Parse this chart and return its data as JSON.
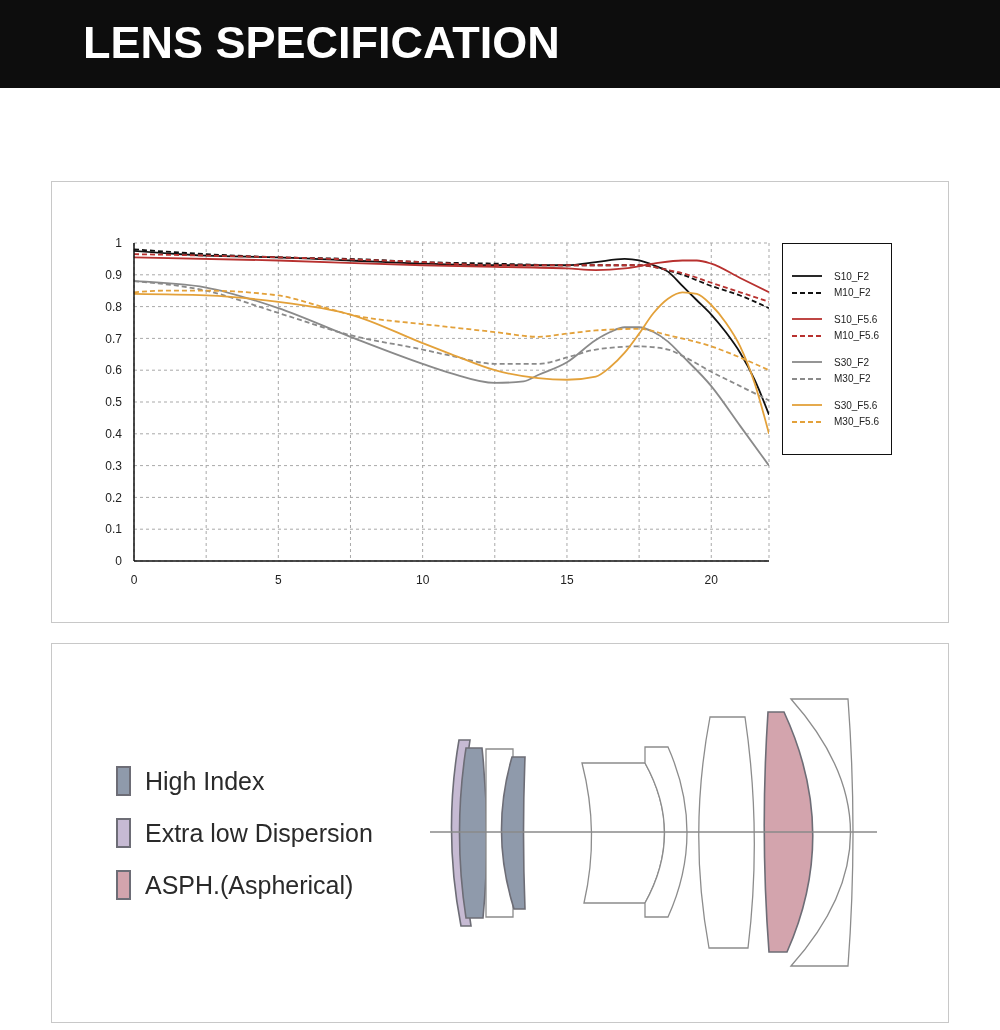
{
  "chart_data": [
    {
      "type": "line",
      "title": "LENS SPECIFICATION",
      "xlim": [
        0,
        22
      ],
      "xticks": [
        0,
        {
          "value": 2.5,
          "label": null
        },
        5,
        {
          "value": 7.5,
          "label": null
        },
        10,
        {
          "value": 12.5,
          "label": null
        },
        15,
        {
          "value": 17.5,
          "label": null
        },
        20
      ],
      "ylim": [
        0,
        1
      ],
      "yticks": [
        0,
        0.1,
        0.2,
        0.3,
        0.4,
        0.5,
        0.6,
        0.7,
        0.8,
        0.9,
        1
      ],
      "grid": true,
      "legend": "right",
      "series": [
        {
          "name": "S10_F2",
          "color": "#111111",
          "line_style": "solid",
          "x": [
            0,
            2.5,
            5,
            7.5,
            10,
            12.5,
            15,
            16,
            17,
            17.5,
            18,
            18.5,
            19,
            19.5,
            20,
            20.5,
            21,
            21.5,
            22
          ],
          "values": [
            0.975,
            0.96,
            0.955,
            0.945,
            0.935,
            0.93,
            0.93,
            0.94,
            0.95,
            0.945,
            0.93,
            0.91,
            0.865,
            0.82,
            0.775,
            0.72,
            0.655,
            0.57,
            0.46
          ]
        },
        {
          "name": "M10_F2",
          "color": "#111111",
          "line_style": "dashed",
          "x": [
            0,
            2.5,
            5,
            7.5,
            10,
            12.5,
            15,
            17.5,
            18,
            19,
            20,
            21,
            22
          ],
          "values": [
            0.98,
            0.965,
            0.955,
            0.95,
            0.94,
            0.935,
            0.93,
            0.93,
            0.925,
            0.9,
            0.865,
            0.835,
            0.795
          ]
        },
        {
          "name": "S10_F5.6",
          "color": "#b8312f",
          "line_style": "solid",
          "x": [
            0,
            5,
            10,
            12.5,
            15,
            16,
            17,
            18,
            19,
            19.5,
            20,
            21,
            22
          ],
          "values": [
            0.955,
            0.945,
            0.93,
            0.925,
            0.92,
            0.915,
            0.92,
            0.935,
            0.945,
            0.945,
            0.935,
            0.89,
            0.845
          ]
        },
        {
          "name": "M10_F5.6",
          "color": "#b8312f",
          "line_style": "dashed",
          "x": [
            0,
            5,
            10,
            12.5,
            15,
            17.5,
            18.5,
            19,
            20,
            21,
            22
          ],
          "values": [
            0.965,
            0.955,
            0.94,
            0.93,
            0.93,
            0.93,
            0.915,
            0.905,
            0.875,
            0.845,
            0.815
          ]
        },
        {
          "name": "S30_F2",
          "color": "#8a8a8a",
          "line_style": "solid",
          "x": [
            0,
            2.5,
            5,
            7.5,
            10,
            11,
            12.5,
            13.5,
            14,
            15,
            16,
            16.5,
            17,
            17.5,
            18,
            18.5,
            19,
            20,
            21,
            22
          ],
          "values": [
            0.88,
            0.86,
            0.795,
            0.705,
            0.62,
            0.59,
            0.56,
            0.565,
            0.585,
            0.625,
            0.695,
            0.72,
            0.735,
            0.735,
            0.72,
            0.69,
            0.645,
            0.55,
            0.425,
            0.3
          ]
        },
        {
          "name": "M30_F2",
          "color": "#8a8a8a",
          "line_style": "dashed",
          "x": [
            0,
            2.5,
            5,
            7.5,
            10,
            11,
            12.5,
            14,
            15,
            16,
            17.5,
            18.5,
            19,
            20,
            21,
            22
          ],
          "values": [
            0.88,
            0.85,
            0.78,
            0.71,
            0.665,
            0.645,
            0.62,
            0.62,
            0.64,
            0.665,
            0.675,
            0.665,
            0.645,
            0.595,
            0.55,
            0.505
          ]
        },
        {
          "name": "S30_F5.6",
          "color": "#e3a13a",
          "line_style": "solid",
          "x": [
            0,
            2.5,
            5,
            6.5,
            7.5,
            10,
            11,
            12.5,
            14,
            15,
            16,
            16.5,
            17,
            17.5,
            18,
            18.5,
            19,
            19.5,
            20,
            20.5,
            21,
            21.5,
            22
          ],
          "values": [
            0.84,
            0.835,
            0.815,
            0.795,
            0.775,
            0.685,
            0.65,
            0.6,
            0.575,
            0.57,
            0.58,
            0.61,
            0.655,
            0.715,
            0.78,
            0.825,
            0.845,
            0.84,
            0.805,
            0.75,
            0.675,
            0.56,
            0.4
          ]
        },
        {
          "name": "M30_F5.6",
          "color": "#e3a13a",
          "line_style": "dashed",
          "x": [
            0,
            1,
            2.5,
            5,
            6.5,
            7.5,
            10,
            11,
            12.5,
            14,
            15,
            16,
            17.5,
            18.5,
            20,
            21,
            22
          ],
          "values": [
            0.845,
            0.85,
            0.85,
            0.835,
            0.8,
            0.775,
            0.745,
            0.735,
            0.72,
            0.705,
            0.715,
            0.725,
            0.73,
            0.71,
            0.675,
            0.64,
            0.6
          ]
        }
      ]
    },
    {
      "type": "other",
      "annotations": [
        "High Index",
        "Extra low Dispersion",
        "ASPH.(Aspherical)"
      ]
    }
  ]
}
